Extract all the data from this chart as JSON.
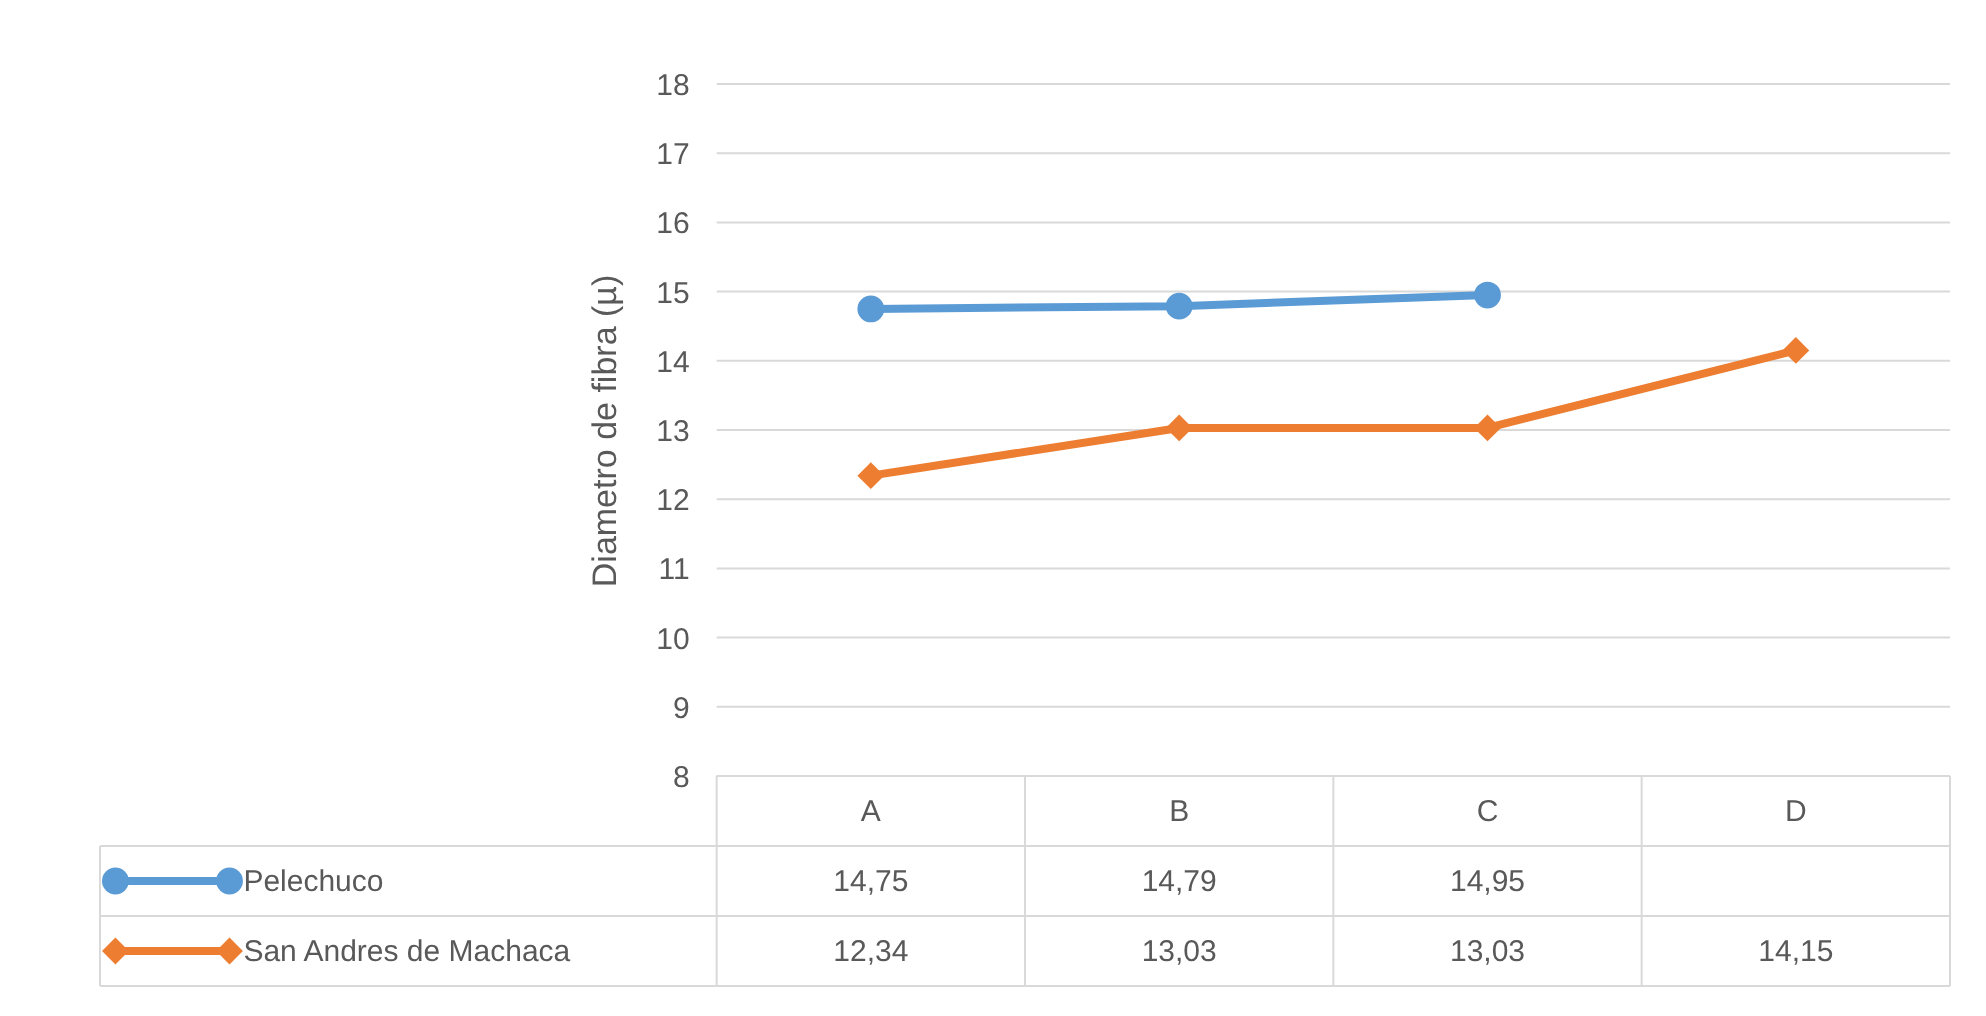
{
  "chart_data": {
    "type": "line",
    "ylabel": "Diametro de fibra  (µ)",
    "categories": [
      "A",
      "B",
      "C",
      "D"
    ],
    "series": [
      {
        "name": "Pelechuco",
        "color": "#5b9bd5",
        "marker": "circle",
        "values": [
          14.75,
          14.79,
          14.95,
          null
        ],
        "value_labels": [
          "14,75",
          "14,79",
          "14,95",
          null
        ]
      },
      {
        "name": "San Andres de Machaca",
        "color": "#ed7d31",
        "marker": "diamond",
        "values": [
          12.34,
          13.03,
          13.03,
          14.15
        ],
        "value_labels": [
          "12,34",
          "13,03",
          "13,03",
          "14,15"
        ]
      }
    ],
    "ylim": [
      8,
      18
    ],
    "yticks": [
      8,
      9,
      10,
      11,
      12,
      13,
      14,
      15,
      16,
      17,
      18
    ],
    "grid": "y",
    "legend": "bottom"
  }
}
